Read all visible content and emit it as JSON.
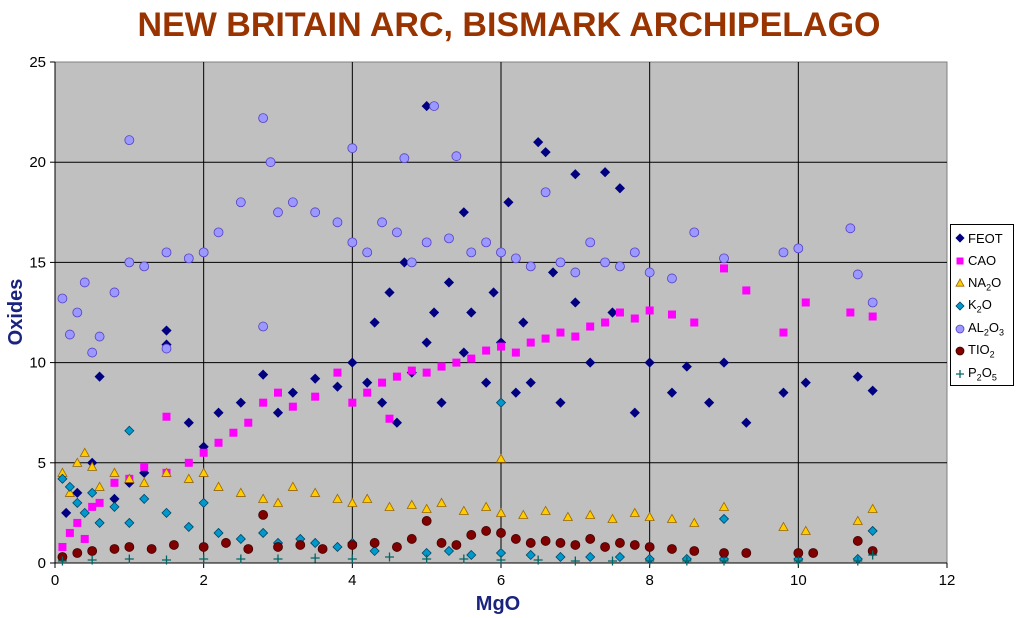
{
  "chart_data": {
    "type": "scatter",
    "title": "NEW BRITAIN ARC, BISMARK ARCHIPELAGO",
    "xlabel": "MgO",
    "ylabel": "Oxides",
    "xlim": [
      0,
      12
    ],
    "ylim": [
      0,
      25
    ],
    "x_ticks": [
      "0",
      "2",
      "4",
      "6",
      "8",
      "10",
      "12"
    ],
    "y_ticks": [
      "0",
      "5",
      "10",
      "15",
      "20",
      "25"
    ],
    "grid": true,
    "plot_background": "#c0c0c0",
    "legend_position": "right",
    "series": [
      {
        "name": "FEOT",
        "marker": "diamond",
        "color": "#000080",
        "points": [
          [
            0.15,
            2.5
          ],
          [
            0.3,
            3.5
          ],
          [
            0.5,
            5.0
          ],
          [
            0.6,
            9.3
          ],
          [
            0.8,
            3.2
          ],
          [
            1.0,
            4.0
          ],
          [
            1.2,
            4.5
          ],
          [
            1.5,
            11.6
          ],
          [
            1.5,
            10.9
          ],
          [
            1.8,
            7.0
          ],
          [
            2.0,
            5.8
          ],
          [
            2.2,
            7.5
          ],
          [
            2.5,
            8.0
          ],
          [
            2.8,
            9.4
          ],
          [
            3.0,
            7.5
          ],
          [
            3.2,
            8.5
          ],
          [
            3.5,
            9.2
          ],
          [
            3.8,
            8.8
          ],
          [
            4.0,
            10.0
          ],
          [
            4.2,
            9.0
          ],
          [
            4.3,
            12.0
          ],
          [
            4.4,
            8.0
          ],
          [
            4.5,
            13.5
          ],
          [
            4.6,
            7.0
          ],
          [
            4.7,
            15.0
          ],
          [
            4.8,
            9.5
          ],
          [
            5.0,
            22.8
          ],
          [
            5.0,
            11.0
          ],
          [
            5.1,
            12.5
          ],
          [
            5.2,
            8.0
          ],
          [
            5.3,
            14.0
          ],
          [
            5.5,
            17.5
          ],
          [
            5.5,
            10.5
          ],
          [
            5.6,
            12.5
          ],
          [
            5.8,
            9.0
          ],
          [
            5.9,
            13.5
          ],
          [
            6.0,
            11.0
          ],
          [
            6.1,
            18.0
          ],
          [
            6.2,
            8.5
          ],
          [
            6.3,
            12.0
          ],
          [
            6.4,
            9.0
          ],
          [
            6.5,
            21.0
          ],
          [
            6.6,
            20.5
          ],
          [
            6.7,
            14.5
          ],
          [
            6.8,
            8.0
          ],
          [
            7.0,
            19.4
          ],
          [
            7.0,
            13.0
          ],
          [
            7.2,
            10.0
          ],
          [
            7.4,
            19.5
          ],
          [
            7.5,
            12.5
          ],
          [
            7.6,
            18.7
          ],
          [
            7.8,
            7.5
          ],
          [
            8.0,
            10.0
          ],
          [
            8.3,
            8.5
          ],
          [
            8.5,
            9.8
          ],
          [
            8.8,
            8.0
          ],
          [
            9.0,
            10.0
          ],
          [
            9.3,
            7.0
          ],
          [
            9.8,
            8.5
          ],
          [
            10.1,
            9.0
          ],
          [
            10.8,
            9.3
          ],
          [
            11.0,
            8.6
          ]
        ]
      },
      {
        "name": "CAO",
        "marker": "square",
        "color": "#ff00ff",
        "points": [
          [
            0.1,
            0.8
          ],
          [
            0.2,
            1.5
          ],
          [
            0.3,
            2.0
          ],
          [
            0.4,
            1.2
          ],
          [
            0.5,
            2.8
          ],
          [
            0.6,
            3.0
          ],
          [
            0.8,
            4.0
          ],
          [
            1.0,
            4.2
          ],
          [
            1.2,
            4.8
          ],
          [
            1.5,
            7.3
          ],
          [
            1.5,
            4.5
          ],
          [
            1.8,
            5.0
          ],
          [
            2.0,
            5.5
          ],
          [
            2.2,
            6.0
          ],
          [
            2.4,
            6.5
          ],
          [
            2.6,
            7.0
          ],
          [
            2.8,
            8.0
          ],
          [
            3.0,
            8.5
          ],
          [
            3.2,
            7.8
          ],
          [
            3.5,
            8.3
          ],
          [
            3.8,
            9.5
          ],
          [
            4.0,
            8.0
          ],
          [
            4.2,
            8.5
          ],
          [
            4.4,
            9.0
          ],
          [
            4.5,
            7.2
          ],
          [
            4.6,
            9.3
          ],
          [
            4.8,
            9.6
          ],
          [
            5.0,
            9.5
          ],
          [
            5.2,
            9.8
          ],
          [
            5.4,
            10.0
          ],
          [
            5.6,
            10.2
          ],
          [
            5.8,
            10.6
          ],
          [
            6.0,
            10.8
          ],
          [
            6.2,
            10.5
          ],
          [
            6.4,
            11.0
          ],
          [
            6.6,
            11.2
          ],
          [
            6.8,
            11.5
          ],
          [
            7.0,
            11.3
          ],
          [
            7.2,
            11.8
          ],
          [
            7.4,
            12.0
          ],
          [
            7.6,
            12.5
          ],
          [
            7.8,
            12.2
          ],
          [
            8.0,
            12.6
          ],
          [
            8.3,
            12.4
          ],
          [
            8.6,
            12.0
          ],
          [
            9.0,
            14.7
          ],
          [
            9.3,
            13.6
          ],
          [
            9.8,
            11.5
          ],
          [
            10.1,
            13.0
          ],
          [
            10.7,
            12.5
          ],
          [
            11.0,
            12.3
          ]
        ]
      },
      {
        "name": "NA2O",
        "marker": "triangle",
        "color": "#ffcc00",
        "points": [
          [
            0.1,
            4.5
          ],
          [
            0.2,
            3.5
          ],
          [
            0.3,
            5.0
          ],
          [
            0.4,
            5.5
          ],
          [
            0.5,
            4.8
          ],
          [
            0.6,
            3.8
          ],
          [
            0.8,
            4.5
          ],
          [
            1.0,
            4.2
          ],
          [
            1.2,
            4.0
          ],
          [
            1.5,
            4.5
          ],
          [
            1.8,
            4.2
          ],
          [
            2.0,
            4.5
          ],
          [
            2.2,
            3.8
          ],
          [
            2.5,
            3.5
          ],
          [
            2.8,
            3.2
          ],
          [
            3.0,
            3.0
          ],
          [
            3.2,
            3.8
          ],
          [
            3.5,
            3.5
          ],
          [
            3.8,
            3.2
          ],
          [
            4.0,
            3.0
          ],
          [
            4.2,
            3.2
          ],
          [
            4.5,
            2.8
          ],
          [
            4.8,
            2.9
          ],
          [
            5.0,
            2.7
          ],
          [
            5.2,
            3.0
          ],
          [
            5.5,
            2.6
          ],
          [
            5.8,
            2.8
          ],
          [
            6.0,
            5.2
          ],
          [
            6.0,
            2.5
          ],
          [
            6.3,
            2.4
          ],
          [
            6.6,
            2.6
          ],
          [
            6.9,
            2.3
          ],
          [
            7.2,
            2.4
          ],
          [
            7.5,
            2.2
          ],
          [
            7.8,
            2.5
          ],
          [
            8.0,
            2.3
          ],
          [
            8.3,
            2.2
          ],
          [
            8.6,
            2.0
          ],
          [
            9.0,
            2.8
          ],
          [
            9.8,
            1.8
          ],
          [
            10.1,
            1.6
          ],
          [
            10.8,
            2.1
          ],
          [
            11.0,
            2.7
          ]
        ]
      },
      {
        "name": "K2O",
        "marker": "diamond",
        "color": "#0099cc",
        "points": [
          [
            0.1,
            4.2
          ],
          [
            0.2,
            3.8
          ],
          [
            0.3,
            3.0
          ],
          [
            0.4,
            2.5
          ],
          [
            0.5,
            3.5
          ],
          [
            0.6,
            2.0
          ],
          [
            0.8,
            2.8
          ],
          [
            1.0,
            6.6
          ],
          [
            1.0,
            2.0
          ],
          [
            1.2,
            3.2
          ],
          [
            1.5,
            2.5
          ],
          [
            1.8,
            1.8
          ],
          [
            2.0,
            3.0
          ],
          [
            2.2,
            1.5
          ],
          [
            2.5,
            1.2
          ],
          [
            2.8,
            1.5
          ],
          [
            3.0,
            1.0
          ],
          [
            3.3,
            1.2
          ],
          [
            3.5,
            1.0
          ],
          [
            3.8,
            0.8
          ],
          [
            4.0,
            1.0
          ],
          [
            4.3,
            0.6
          ],
          [
            4.6,
            0.8
          ],
          [
            5.0,
            0.5
          ],
          [
            5.3,
            0.6
          ],
          [
            5.6,
            0.4
          ],
          [
            6.0,
            0.5
          ],
          [
            6.0,
            8.0
          ],
          [
            6.4,
            0.4
          ],
          [
            6.8,
            0.3
          ],
          [
            7.2,
            0.3
          ],
          [
            7.6,
            0.3
          ],
          [
            8.0,
            0.2
          ],
          [
            8.5,
            0.2
          ],
          [
            9.0,
            2.2
          ],
          [
            9.0,
            0.2
          ],
          [
            10.0,
            0.2
          ],
          [
            10.8,
            0.2
          ],
          [
            11.0,
            1.6
          ]
        ]
      },
      {
        "name": "AL2O3",
        "marker": "circle",
        "color": "#9999ff",
        "points": [
          [
            0.1,
            13.2
          ],
          [
            0.2,
            11.4
          ],
          [
            0.3,
            12.5
          ],
          [
            0.4,
            14.0
          ],
          [
            0.5,
            10.5
          ],
          [
            0.6,
            11.3
          ],
          [
            0.8,
            13.5
          ],
          [
            1.0,
            21.1
          ],
          [
            1.0,
            15.0
          ],
          [
            1.2,
            14.8
          ],
          [
            1.5,
            15.5
          ],
          [
            1.5,
            10.7
          ],
          [
            1.8,
            15.2
          ],
          [
            2.0,
            15.5
          ],
          [
            2.2,
            16.5
          ],
          [
            2.5,
            18.0
          ],
          [
            2.8,
            22.2
          ],
          [
            2.8,
            11.8
          ],
          [
            2.9,
            20.0
          ],
          [
            3.0,
            17.5
          ],
          [
            3.2,
            18.0
          ],
          [
            3.5,
            17.5
          ],
          [
            3.8,
            17.0
          ],
          [
            4.0,
            20.7
          ],
          [
            4.0,
            16.0
          ],
          [
            4.2,
            15.5
          ],
          [
            4.4,
            17.0
          ],
          [
            4.6,
            16.5
          ],
          [
            4.7,
            20.2
          ],
          [
            4.8,
            15.0
          ],
          [
            5.0,
            16.0
          ],
          [
            5.1,
            22.8
          ],
          [
            5.3,
            16.2
          ],
          [
            5.4,
            20.3
          ],
          [
            5.6,
            15.5
          ],
          [
            5.8,
            16.0
          ],
          [
            6.0,
            15.5
          ],
          [
            6.2,
            15.2
          ],
          [
            6.4,
            14.8
          ],
          [
            6.6,
            18.5
          ],
          [
            6.8,
            15.0
          ],
          [
            7.0,
            14.5
          ],
          [
            7.2,
            16.0
          ],
          [
            7.4,
            15.0
          ],
          [
            7.6,
            14.8
          ],
          [
            7.8,
            15.5
          ],
          [
            8.0,
            14.5
          ],
          [
            8.3,
            14.2
          ],
          [
            8.6,
            16.5
          ],
          [
            9.0,
            15.2
          ],
          [
            9.8,
            15.5
          ],
          [
            10.0,
            15.7
          ],
          [
            10.7,
            16.7
          ],
          [
            10.8,
            14.4
          ],
          [
            11.0,
            13.0
          ]
        ]
      },
      {
        "name": "TIO2",
        "marker": "circle",
        "color": "#800000",
        "points": [
          [
            0.1,
            0.3
          ],
          [
            0.3,
            0.5
          ],
          [
            0.5,
            0.6
          ],
          [
            0.8,
            0.7
          ],
          [
            1.0,
            0.8
          ],
          [
            1.3,
            0.7
          ],
          [
            1.6,
            0.9
          ],
          [
            2.0,
            0.8
          ],
          [
            2.3,
            1.0
          ],
          [
            2.6,
            0.7
          ],
          [
            2.8,
            2.4
          ],
          [
            3.0,
            0.8
          ],
          [
            3.3,
            0.9
          ],
          [
            3.6,
            0.7
          ],
          [
            4.0,
            0.9
          ],
          [
            4.3,
            1.0
          ],
          [
            4.6,
            0.8
          ],
          [
            4.8,
            1.2
          ],
          [
            5.0,
            2.1
          ],
          [
            5.2,
            1.0
          ],
          [
            5.4,
            0.9
          ],
          [
            5.6,
            1.4
          ],
          [
            5.8,
            1.6
          ],
          [
            6.0,
            1.5
          ],
          [
            6.2,
            1.2
          ],
          [
            6.4,
            1.0
          ],
          [
            6.6,
            1.1
          ],
          [
            6.8,
            1.0
          ],
          [
            7.0,
            0.9
          ],
          [
            7.2,
            1.2
          ],
          [
            7.4,
            0.8
          ],
          [
            7.6,
            1.0
          ],
          [
            7.8,
            0.9
          ],
          [
            8.0,
            0.8
          ],
          [
            8.3,
            0.7
          ],
          [
            8.6,
            0.6
          ],
          [
            9.0,
            0.5
          ],
          [
            9.3,
            0.5
          ],
          [
            10.0,
            0.5
          ],
          [
            10.2,
            0.5
          ],
          [
            10.8,
            1.1
          ],
          [
            11.0,
            0.6
          ]
        ]
      },
      {
        "name": "P2O5",
        "marker": "plus",
        "color": "#006666",
        "points": [
          [
            0.1,
            0.1
          ],
          [
            0.5,
            0.15
          ],
          [
            1.0,
            0.2
          ],
          [
            1.5,
            0.15
          ],
          [
            2.0,
            0.2
          ],
          [
            2.5,
            0.2
          ],
          [
            3.0,
            0.2
          ],
          [
            3.5,
            0.25
          ],
          [
            4.0,
            0.2
          ],
          [
            4.5,
            0.3
          ],
          [
            5.0,
            0.2
          ],
          [
            5.5,
            0.2
          ],
          [
            6.0,
            0.15
          ],
          [
            6.5,
            0.15
          ],
          [
            7.0,
            0.1
          ],
          [
            7.5,
            0.1
          ],
          [
            8.0,
            0.1
          ],
          [
            8.5,
            0.1
          ],
          [
            9.0,
            0.1
          ],
          [
            10.0,
            0.1
          ],
          [
            10.8,
            0.1
          ],
          [
            11.0,
            0.4
          ]
        ]
      }
    ]
  }
}
